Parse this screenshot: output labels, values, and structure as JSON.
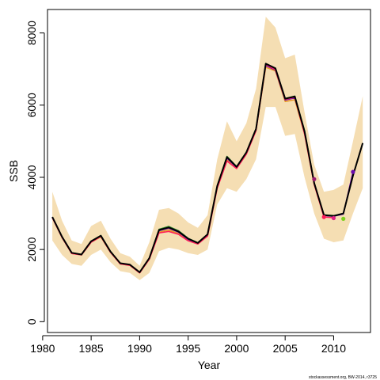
{
  "chart_data": {
    "type": "line",
    "xlabel": "Year",
    "ylabel": "SSB",
    "xlim": [
      1980.5,
      2013.8
    ],
    "ylim": [
      -300,
      8650
    ],
    "x_ticks": [
      1980,
      1985,
      1990,
      1995,
      2000,
      2005,
      2010
    ],
    "y_ticks": [
      0,
      2000,
      4000,
      6000,
      8000
    ],
    "grid": false,
    "legend": "none",
    "footnote": "stockassessment.org, BW-2014, r3725",
    "band": {
      "color": "#f5deb3",
      "x": [
        1981,
        1982,
        1983,
        1984,
        1985,
        1986,
        1987,
        1988,
        1989,
        1990,
        1991,
        1992,
        1993,
        1994,
        1995,
        1996,
        1997,
        1998,
        1999,
        2000,
        2001,
        2002,
        2003,
        2004,
        2005,
        2006,
        2007,
        2008,
        2009,
        2010,
        2011,
        2012,
        2013
      ],
      "lower": [
        2250,
        1850,
        1600,
        1550,
        1850,
        2000,
        1650,
        1400,
        1350,
        1150,
        1350,
        1950,
        2050,
        2000,
        1900,
        1850,
        2000,
        3250,
        3700,
        3600,
        3950,
        4500,
        5950,
        5950,
        5150,
        5200,
        4000,
        3000,
        2300,
        2200,
        2250,
        3000,
        3700
      ],
      "upper": [
        3600,
        2800,
        2250,
        2150,
        2650,
        2800,
        2300,
        1900,
        1800,
        1550,
        2200,
        3100,
        3150,
        3000,
        2750,
        2600,
        2950,
        4500,
        5550,
        5000,
        5500,
        6450,
        8450,
        8150,
        7300,
        7400,
        5800,
        4350,
        3600,
        3650,
        3800,
        5000,
        6250
      ]
    },
    "series": [
      {
        "color": "#e8961e",
        "x": [
          1981,
          1982,
          1983,
          1984,
          1985,
          1986,
          1987,
          1988,
          1989,
          1990,
          1991,
          1992,
          1993,
          1994,
          1995,
          1996,
          1997,
          1998,
          1999,
          2000,
          2001,
          2002,
          2003,
          2004,
          2005,
          2006,
          2007,
          2008,
          2009
        ],
        "values": [
          2880,
          2330,
          1890,
          1850,
          2200,
          2350,
          1920,
          1600,
          1560,
          1350,
          1730,
          2480,
          2540,
          2440,
          2250,
          2160,
          2380,
          3700,
          4480,
          4250,
          4650,
          5300,
          7050,
          6950,
          6100,
          6150,
          5200,
          3800,
          2920
        ]
      },
      {
        "color": "#2e8b2e",
        "x": [
          1981,
          1982,
          1983,
          1984,
          1985,
          1986,
          1987,
          1988,
          1989,
          1990,
          1991,
          1992,
          1993,
          1994,
          1995,
          1996,
          1997,
          1998,
          1999,
          2000,
          2001,
          2002,
          2003,
          2004,
          2005,
          2006,
          2007,
          2008,
          2009,
          2010,
          2011
        ],
        "values": [
          2900,
          2350,
          1910,
          1860,
          2230,
          2390,
          1950,
          1620,
          1580,
          1370,
          1760,
          2560,
          2640,
          2520,
          2310,
          2190,
          2420,
          3770,
          4580,
          4300,
          4700,
          5350,
          7150,
          7000,
          6180,
          6250,
          5300,
          3850,
          2960,
          2940,
          3000
        ]
      },
      {
        "color": "#6a0dad",
        "x": [
          1981,
          1982,
          1983,
          1984,
          1985,
          1986,
          1987,
          1988,
          1989,
          1990,
          1991,
          1992,
          1993,
          1994,
          1995,
          1996,
          1997,
          1998,
          1999,
          2000,
          2001,
          2002,
          2003,
          2004,
          2005,
          2006,
          2007,
          2008,
          2009,
          2010,
          2011,
          2012
        ],
        "values": [
          2890,
          2340,
          1900,
          1855,
          2215,
          2370,
          1935,
          1610,
          1570,
          1360,
          1745,
          2520,
          2590,
          2480,
          2280,
          2175,
          2400,
          3740,
          4530,
          4270,
          4670,
          5320,
          7100,
          6970,
          6140,
          6200,
          5250,
          3820,
          2940,
          2920,
          2980,
          4150
        ]
      },
      {
        "color": "#ff1e5a",
        "x": [
          1981,
          1982,
          1983,
          1984,
          1985,
          1986,
          1987,
          1988,
          1989,
          1990,
          1991,
          1992,
          1993,
          1994,
          1995,
          1996,
          1997,
          1998,
          1999,
          2000,
          2001,
          2002,
          2003,
          2004,
          2005,
          2006,
          2007,
          2008,
          2009,
          2010
        ],
        "values": [
          2880,
          2330,
          1890,
          1850,
          2200,
          2360,
          1920,
          1600,
          1560,
          1350,
          1730,
          2460,
          2500,
          2420,
          2240,
          2150,
          2370,
          3700,
          4450,
          4240,
          4640,
          5290,
          7130,
          6980,
          6160,
          6220,
          5200,
          3800,
          2900,
          2880
        ]
      },
      {
        "color": "#000000",
        "x": [
          1981,
          1982,
          1983,
          1984,
          1985,
          1986,
          1987,
          1988,
          1989,
          1990,
          1991,
          1992,
          1993,
          1994,
          1995,
          1996,
          1997,
          1998,
          1999,
          2000,
          2001,
          2002,
          2003,
          2004,
          2005,
          2006,
          2007,
          2008,
          2009,
          2010,
          2011,
          2012,
          2013
        ],
        "values": [
          2900,
          2350,
          1910,
          1860,
          2230,
          2380,
          1940,
          1620,
          1580,
          1370,
          1760,
          2540,
          2610,
          2500,
          2300,
          2180,
          2420,
          3760,
          4560,
          4290,
          4690,
          5340,
          7150,
          7020,
          6180,
          6240,
          5270,
          3840,
          2950,
          2930,
          3000,
          4050,
          4950
        ]
      }
    ],
    "points": [
      {
        "x": 2008,
        "y": 3950,
        "color": "#9b1b6e"
      },
      {
        "x": 2009,
        "y": 2900,
        "color": "#ff1e5a"
      },
      {
        "x": 2010,
        "y": 2870,
        "color": "#e0218a"
      },
      {
        "x": 2011,
        "y": 2850,
        "color": "#7cd11e"
      },
      {
        "x": 2012,
        "y": 4150,
        "color": "#6a0dad"
      }
    ]
  }
}
